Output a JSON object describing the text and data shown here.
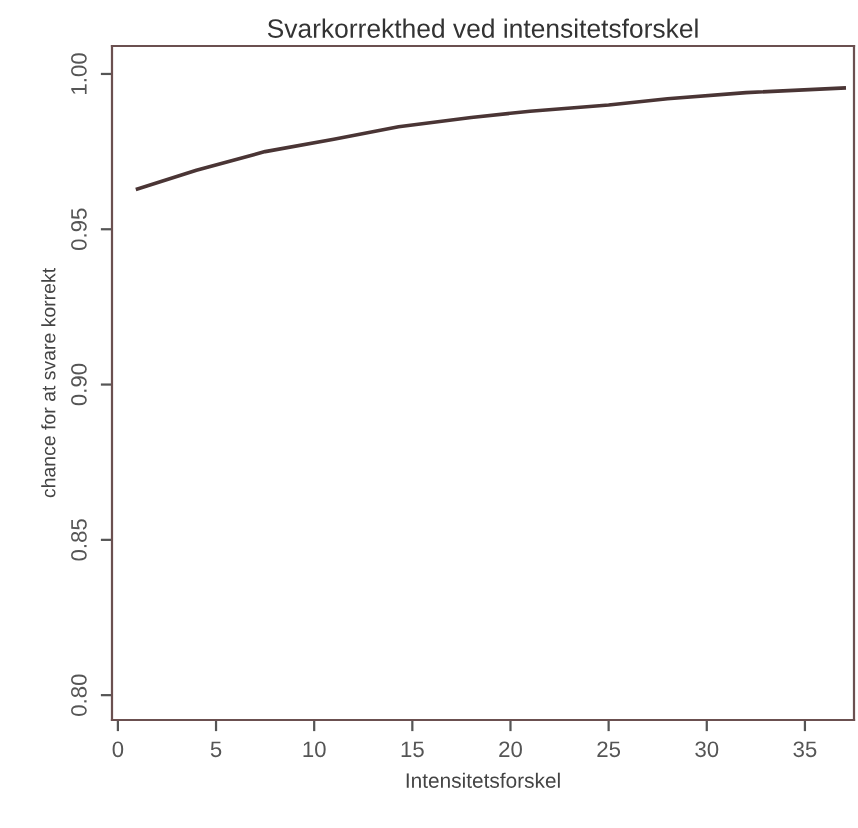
{
  "chart_data": {
    "type": "line",
    "title": "Svarkorrekthed ved intensitetsforskel",
    "xlabel": "Intensitetsforskel",
    "ylabel": "chance for at svare korrekt",
    "x": [
      1,
      4,
      7.5,
      11,
      14.3,
      18,
      21,
      25,
      28,
      32,
      37
    ],
    "series": [
      {
        "color": "#4a3535",
        "values": [
          0.963,
          0.969,
          0.975,
          0.979,
          0.983,
          0.986,
          0.988,
          0.99,
          0.992,
          0.994,
          0.9955
        ]
      }
    ],
    "xlim": [
      -0.3,
      37.5
    ],
    "ylim": [
      0.792,
      1.009
    ],
    "xticks": [
      0,
      5,
      10,
      15,
      20,
      25,
      30,
      35
    ],
    "yticks": [
      {
        "value": 0.8,
        "label": "0.80"
      },
      {
        "value": 0.85,
        "label": "0.85"
      },
      {
        "value": 0.9,
        "label": "0.90"
      },
      {
        "value": 0.95,
        "label": "0.95"
      },
      {
        "value": 1.0,
        "label": "1.00"
      }
    ],
    "grid": false,
    "marker": "none",
    "line_style": "solid"
  }
}
